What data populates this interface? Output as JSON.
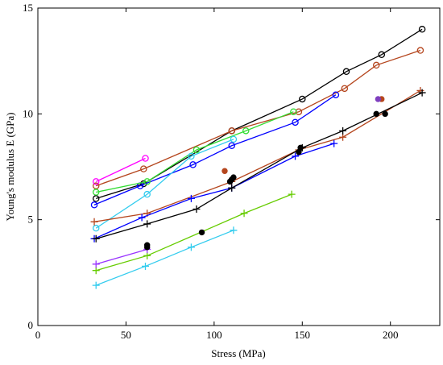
{
  "chart_data": {
    "type": "scatter",
    "title": "",
    "xlabel": "Stress (MPa)",
    "ylabel": "Young's modulus E (GPa)",
    "xlim": [
      0,
      228
    ],
    "ylim": [
      0,
      15
    ],
    "xticks": [
      0,
      50,
      100,
      150,
      200
    ],
    "xtick_labels": [
      "0",
      "50",
      "100",
      "150",
      "200"
    ],
    "yticks": [
      0,
      5,
      10,
      15
    ],
    "ytick_labels": [
      "0",
      "5",
      "10",
      "15"
    ],
    "grid": false,
    "legend": "none",
    "series": [
      {
        "marker": "circle-open",
        "color": "#000000",
        "x": [
          33,
          60,
          110,
          150,
          175,
          195,
          218
        ],
        "y": [
          6.0,
          6.7,
          9.2,
          10.7,
          12.0,
          12.8,
          14.0
        ]
      },
      {
        "marker": "circle-open",
        "color": "#b5461e",
        "x": [
          33,
          60,
          110,
          148,
          174,
          192,
          217
        ],
        "y": [
          6.6,
          7.4,
          9.2,
          10.1,
          11.2,
          12.3,
          13.0
        ]
      },
      {
        "marker": "circle-open",
        "color": "#0000ff",
        "x": [
          32,
          58,
          88,
          110,
          146,
          169
        ],
        "y": [
          5.7,
          6.6,
          7.6,
          8.5,
          9.6,
          10.9
        ]
      },
      {
        "marker": "circle-open",
        "color": "#33dd33",
        "x": [
          33,
          62,
          90,
          118,
          145
        ],
        "y": [
          6.3,
          6.8,
          8.3,
          9.2,
          10.1
        ]
      },
      {
        "marker": "circle-open",
        "color": "#ff00ff",
        "x": [
          33,
          61
        ],
        "y": [
          6.8,
          7.9
        ]
      },
      {
        "marker": "circle-open",
        "color": "#33ccee",
        "x": [
          33,
          62,
          87,
          111
        ],
        "y": [
          4.6,
          6.2,
          8.0,
          8.8
        ]
      },
      {
        "marker": "plus",
        "color": "#b5461e",
        "x": [
          32,
          62,
          110,
          148,
          173,
          217
        ],
        "y": [
          4.9,
          5.3,
          6.8,
          8.3,
          8.9,
          11.1
        ]
      },
      {
        "marker": "plus",
        "color": "#0000ff",
        "x": [
          32,
          59,
          87,
          110,
          146,
          168
        ],
        "y": [
          4.1,
          5.1,
          6.0,
          6.5,
          8.0,
          8.6
        ]
      },
      {
        "marker": "plus",
        "color": "#000000",
        "x": [
          33,
          62,
          90,
          110,
          150,
          173,
          218
        ],
        "y": [
          4.1,
          4.8,
          5.5,
          6.5,
          8.4,
          9.2,
          11.0
        ]
      },
      {
        "marker": "plus",
        "color": "#66cc00",
        "x": [
          33,
          62,
          117,
          144
        ],
        "y": [
          2.6,
          3.3,
          5.3,
          6.2
        ]
      },
      {
        "marker": "plus",
        "color": "#9933ff",
        "x": [
          33,
          62
        ],
        "y": [
          2.9,
          3.6
        ]
      },
      {
        "marker": "plus",
        "color": "#33ccee",
        "x": [
          33,
          61,
          87,
          111
        ],
        "y": [
          1.9,
          2.8,
          3.7,
          4.5
        ]
      },
      {
        "marker": "dot",
        "color": "#000000",
        "x": [
          62,
          62,
          93,
          109,
          110,
          111,
          148,
          149,
          192,
          197
        ],
        "y": [
          3.7,
          3.8,
          4.4,
          6.8,
          6.9,
          7.0,
          8.2,
          8.4,
          10.0,
          10.0
        ]
      },
      {
        "marker": "dot",
        "color": "#b5461e",
        "x": [
          106,
          195
        ],
        "y": [
          7.3,
          10.7
        ]
      },
      {
        "marker": "dot",
        "color": "#7f3fbf",
        "x": [
          193
        ],
        "y": [
          10.7
        ]
      }
    ]
  }
}
